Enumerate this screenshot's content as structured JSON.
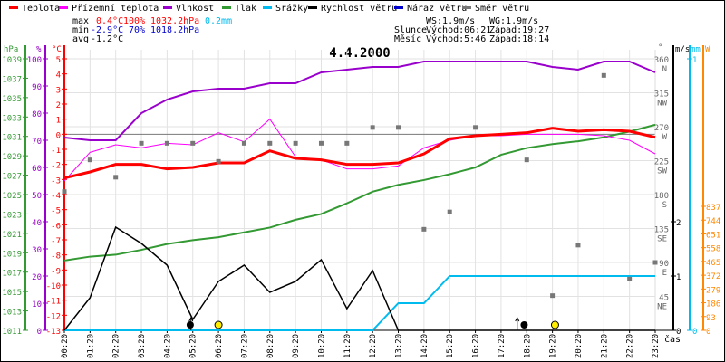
{
  "chart_data": {
    "type": "line",
    "title": "4.4.2000",
    "legend": {
      "placement": "top",
      "items": [
        {
          "name": "Teplota",
          "color": "#ff0000"
        },
        {
          "name": "Přízemní teplota",
          "color": "#ff00ff"
        },
        {
          "name": "Vlhkost",
          "color": "#9900cc"
        },
        {
          "name": "Tlak",
          "color": "#339933"
        },
        {
          "name": "Srážky",
          "color": "#00bbee"
        },
        {
          "name": "Rychlost větru",
          "color": "#000000"
        },
        {
          "name": "Náraz větru",
          "color": "#0000cc"
        },
        {
          "name": "Směr větru",
          "color": "#777777"
        }
      ]
    },
    "stats": {
      "max_label": "max",
      "min_label": "min",
      "avg_label": "avg",
      "max_temp": "0.4°C",
      "max_hum": "100%",
      "max_press": "1032.2hPa",
      "max_precip": "0.2mm",
      "min_temp": "-2.9°C",
      "min_hum": "70%",
      "min_press": "1018.2hPa",
      "avg_temp": "-1.2°C"
    },
    "info": {
      "ws": "WS:1.9m/s",
      "wg": "WG:1.9m/s",
      "sun_label": "Slunce",
      "sunrise": "Východ:06:21",
      "sunset": "Západ:19:27",
      "moon_label": "Měsíc",
      "moonrise": "Východ:5:46",
      "moonset": "Západ:18:14"
    },
    "x_label": "čas",
    "x_ticks": [
      "00:20",
      "01:20",
      "02:20",
      "03:20",
      "04:20",
      "05:20",
      "06:20",
      "07:20",
      "08:20",
      "09:20",
      "10:20",
      "11:20",
      "12:20",
      "13:20",
      "14:20",
      "15:20",
      "16:20",
      "17:20",
      "18:20",
      "19:20",
      "20:20",
      "21:20",
      "22:20",
      "23:20"
    ],
    "axes": {
      "pressure": {
        "unit": "hPa",
        "range": [
          1011,
          1039
        ],
        "ticks": [
          "1039",
          "1037",
          "1035",
          "1033",
          "1031",
          "1029",
          "1027",
          "1025",
          "1023",
          "1021",
          "1019",
          "1017",
          "1015",
          "1013",
          "1011"
        ]
      },
      "humidity": {
        "unit": "%",
        "range": [
          0,
          100
        ],
        "ticks": [
          "100",
          "90",
          "80",
          "70",
          "60",
          "50",
          "40",
          "30",
          "20",
          "10",
          "0"
        ]
      },
      "temperature": {
        "unit": "°C",
        "range": [
          -13,
          5
        ],
        "ticks": [
          "5",
          "4",
          "3",
          "2",
          "1",
          "0",
          "-1",
          "-2",
          "-3",
          "-4",
          "-5",
          "-6",
          "-7",
          "-8",
          "-9",
          "-10",
          "-11",
          "-12",
          "-13"
        ]
      },
      "direction": {
        "unit": "°",
        "range": [
          0,
          360
        ],
        "ticks": [
          [
            "360",
            "N"
          ],
          [
            "315",
            "NW"
          ],
          [
            "270",
            "W"
          ],
          [
            "225",
            "SW"
          ],
          [
            "180",
            "S"
          ],
          [
            "135",
            "SE"
          ],
          [
            "90",
            "E"
          ],
          [
            "45",
            "NE"
          ]
        ]
      },
      "wind": {
        "unit": "m/s",
        "range": [
          0,
          2.5
        ],
        "ticks": [
          "2",
          "1",
          "0"
        ]
      },
      "precip": {
        "unit": "mm",
        "range": [
          0,
          1
        ],
        "ticks": [
          "1",
          "0"
        ]
      },
      "solar": {
        "unit": "W",
        "range": [
          0,
          837
        ],
        "ticks": [
          "837",
          "744",
          "651",
          "558",
          "465",
          "372",
          "279",
          "186",
          "93",
          "0"
        ]
      }
    },
    "series": [
      {
        "name": "Teplota",
        "axis": "temperature",
        "values": [
          -2.9,
          -2.5,
          -2.0,
          -2.0,
          -2.3,
          -2.2,
          -1.9,
          -1.9,
          -1.1,
          -1.6,
          -1.7,
          -2.0,
          -2.0,
          -1.9,
          -1.3,
          -0.3,
          -0.1,
          0.0,
          0.1,
          0.4,
          0.2,
          0.3,
          0.2,
          -0.2
        ]
      },
      {
        "name": "Přízemní teplota",
        "axis": "temperature",
        "values": [
          -3.1,
          -1.2,
          -0.7,
          -0.9,
          -0.6,
          -0.7,
          0.1,
          -0.5,
          1.0,
          -1.5,
          -1.7,
          -2.3,
          -2.3,
          -2.1,
          -0.9,
          -0.4,
          -0.1,
          -0.1,
          0.0,
          0.0,
          0.0,
          -0.1,
          -0.4,
          -1.3
        ]
      },
      {
        "name": "Vlhkost",
        "axis": "humidity",
        "values": [
          71,
          70,
          70,
          80,
          85,
          88,
          89,
          89,
          91,
          91,
          95,
          96,
          97,
          97,
          99,
          99,
          99,
          99,
          99,
          97,
          96,
          99,
          99,
          95
        ]
      },
      {
        "name": "Tlak",
        "axis": "pressure",
        "values": [
          1018.2,
          1018.6,
          1018.8,
          1019.3,
          1019.9,
          1020.3,
          1020.6,
          1021.1,
          1021.6,
          1022.4,
          1023.0,
          1024.1,
          1025.3,
          1026.0,
          1026.5,
          1027.1,
          1027.8,
          1029.1,
          1029.8,
          1030.2,
          1030.5,
          1030.9,
          1031.5,
          1032.2
        ]
      },
      {
        "name": "Srážky",
        "axis": "precip",
        "values": [
          0,
          0,
          0,
          0,
          0,
          0,
          0,
          0,
          0,
          0,
          0,
          0,
          0,
          0.1,
          0.1,
          0.2,
          0.2,
          0.2,
          0.2,
          0.2,
          0.2,
          0.2,
          0.2,
          0.2
        ]
      },
      {
        "name": "Rychlost větru",
        "axis": "wind",
        "values": [
          0,
          0.6,
          1.9,
          1.6,
          1.2,
          0.2,
          0.9,
          1.2,
          0.7,
          0.9,
          1.3,
          0.4,
          1.1,
          0,
          0,
          0,
          0,
          0,
          0,
          0,
          0,
          0,
          0,
          0
        ]
      },
      {
        "name": "Směr větru",
        "axis": "direction",
        "values": [
          184,
          226,
          203,
          248,
          248,
          248,
          224,
          248,
          248,
          248,
          248,
          248,
          269,
          269,
          134,
          157,
          269,
          null,
          226,
          46,
          113,
          338,
          68,
          90
        ]
      }
    ],
    "events": [
      {
        "type": "moonrise",
        "hour": 4.9
      },
      {
        "type": "sunrise",
        "hour": 6.0
      },
      {
        "type": "moonset",
        "hour": 17.9
      },
      {
        "type": "sunset",
        "hour": 19.1
      }
    ]
  }
}
